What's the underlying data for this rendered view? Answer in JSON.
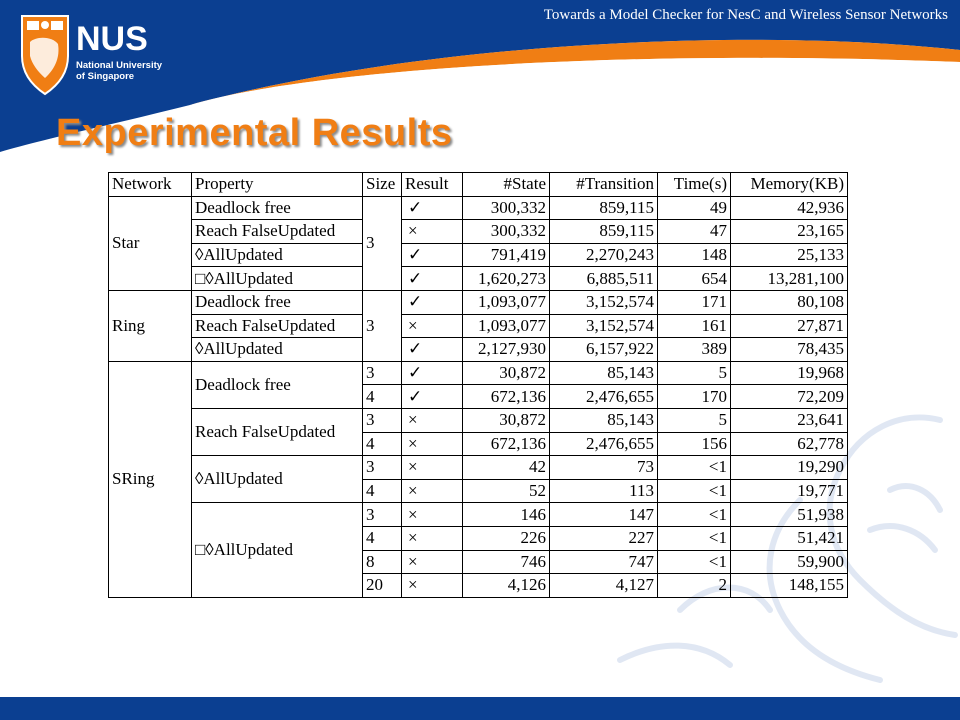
{
  "header": {
    "top_title": "Towards a Model Checker for NesC and Wireless Sensor Networks",
    "logo": {
      "acronym": "NUS",
      "line1": "National University",
      "line2": "of Singapore"
    }
  },
  "slide_title": "Experimental Results",
  "colors": {
    "brand_blue": "#0b3f91",
    "accent_orange": "#f07e14",
    "title_orange": "#f07e14"
  },
  "table": {
    "headers": [
      "Network",
      "Property",
      "Size",
      "Result",
      "#State",
      "#Transition",
      "Time(s)",
      "Memory(KB)"
    ],
    "symbols": {
      "pass": "✓",
      "fail": "×",
      "diamond": "◊",
      "box": "□"
    },
    "groups": [
      {
        "network": "Star",
        "properties": [
          {
            "name": "Deadlock free",
            "runs": [
              {
                "size": "3",
                "result": "✓",
                "states": "300,332",
                "transitions": "859,115",
                "time": "49",
                "memory": "42,936"
              }
            ]
          },
          {
            "name": "Reach FalseUpdated",
            "runs": [
              {
                "size": "3",
                "result": "×",
                "states": "300,332",
                "transitions": "859,115",
                "time": "47",
                "memory": "23,165"
              }
            ]
          },
          {
            "name": "◊AllUpdated",
            "runs": [
              {
                "size": "3",
                "result": "✓",
                "states": "791,419",
                "transitions": "2,270,243",
                "time": "148",
                "memory": "25,133"
              }
            ]
          },
          {
            "name": "□◊AllUpdated",
            "runs": [
              {
                "size": "3",
                "result": "✓",
                "states": "1,620,273",
                "transitions": "6,885,511",
                "time": "654",
                "memory": "13,281,100"
              }
            ]
          }
        ],
        "shared_size": "3"
      },
      {
        "network": "Ring",
        "properties": [
          {
            "name": "Deadlock free",
            "runs": [
              {
                "size": "3",
                "result": "✓",
                "states": "1,093,077",
                "transitions": "3,152,574",
                "time": "171",
                "memory": "80,108"
              }
            ]
          },
          {
            "name": "Reach FalseUpdated",
            "runs": [
              {
                "size": "3",
                "result": "×",
                "states": "1,093,077",
                "transitions": "3,152,574",
                "time": "161",
                "memory": "27,871"
              }
            ]
          },
          {
            "name": "◊AllUpdated",
            "runs": [
              {
                "size": "3",
                "result": "✓",
                "states": "2,127,930",
                "transitions": "6,157,922",
                "time": "389",
                "memory": "78,435"
              }
            ]
          }
        ],
        "shared_size": "3"
      },
      {
        "network": "SRing",
        "properties": [
          {
            "name": "Deadlock free",
            "runs": [
              {
                "size": "3",
                "result": "✓",
                "states": "30,872",
                "transitions": "85,143",
                "time": "5",
                "memory": "19,968"
              },
              {
                "size": "4",
                "result": "✓",
                "states": "672,136",
                "transitions": "2,476,655",
                "time": "170",
                "memory": "72,209"
              }
            ]
          },
          {
            "name": "Reach FalseUpdated",
            "runs": [
              {
                "size": "3",
                "result": "×",
                "states": "30,872",
                "transitions": "85,143",
                "time": "5",
                "memory": "23,641"
              },
              {
                "size": "4",
                "result": "×",
                "states": "672,136",
                "transitions": "2,476,655",
                "time": "156",
                "memory": "62,778"
              }
            ]
          },
          {
            "name": "◊AllUpdated",
            "runs": [
              {
                "size": "3",
                "result": "×",
                "states": "42",
                "transitions": "73",
                "time": "<1",
                "memory": "19,290"
              },
              {
                "size": "4",
                "result": "×",
                "states": "52",
                "transitions": "113",
                "time": "<1",
                "memory": "19,771"
              }
            ]
          },
          {
            "name": "□◊AllUpdated",
            "runs": [
              {
                "size": "3",
                "result": "×",
                "states": "146",
                "transitions": "147",
                "time": "<1",
                "memory": "51,938"
              },
              {
                "size": "4",
                "result": "×",
                "states": "226",
                "transitions": "227",
                "time": "<1",
                "memory": "51,421"
              },
              {
                "size": "8",
                "result": "×",
                "states": "746",
                "transitions": "747",
                "time": "<1",
                "memory": "59,900"
              },
              {
                "size": "20",
                "result": "×",
                "states": "4,126",
                "transitions": "4,127",
                "time": "2",
                "memory": "148,155"
              }
            ]
          }
        ]
      }
    ]
  }
}
